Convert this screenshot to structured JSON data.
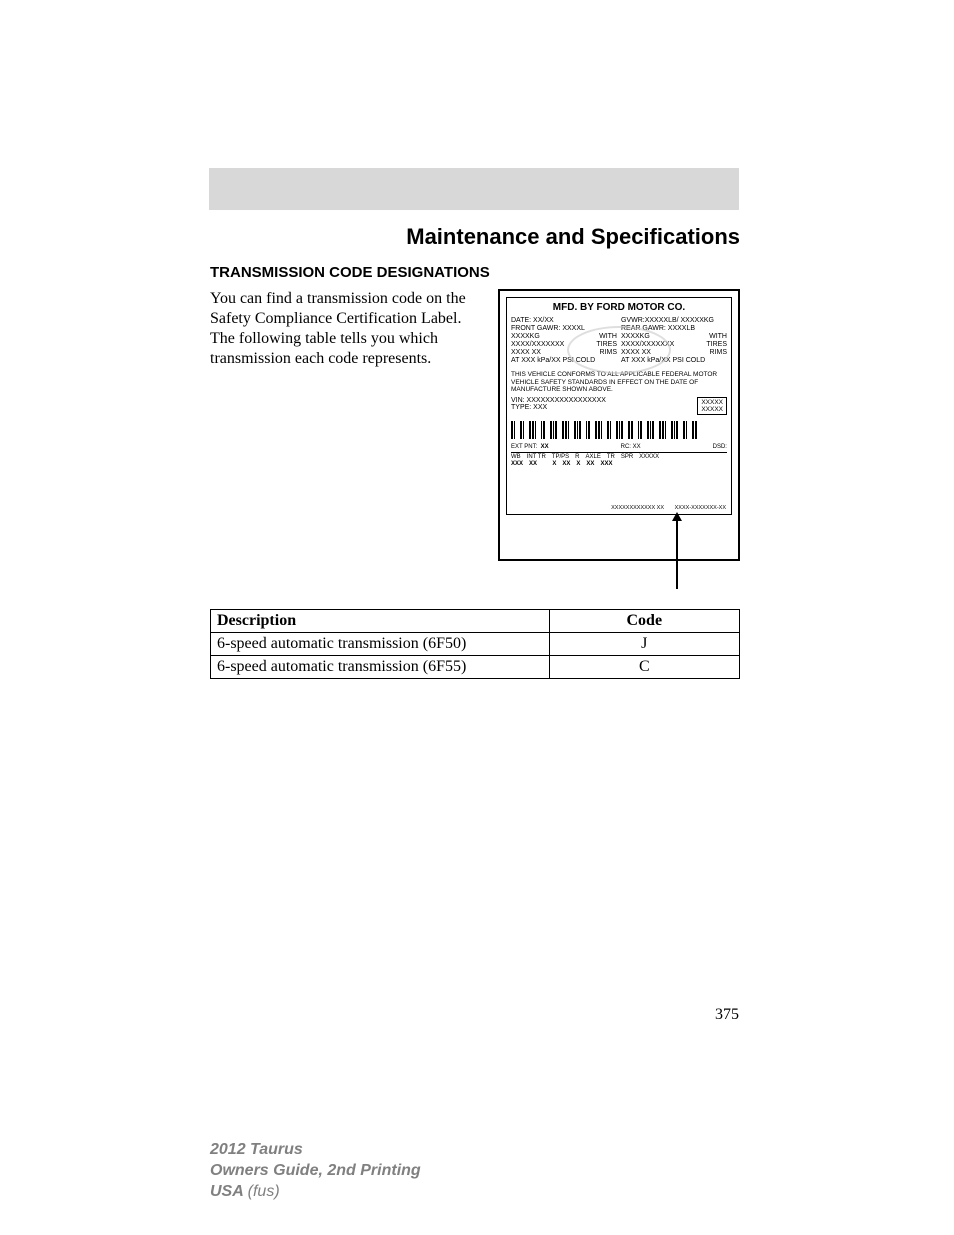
{
  "header": {
    "section_title": "Maintenance and Specifications",
    "subsection": "TRANSMISSION CODE DESIGNATIONS"
  },
  "body": {
    "paragraph": "You can find a transmission code on the Safety Compliance Certification Label. The following table tells you which transmission each code represents."
  },
  "label": {
    "mfd_by": "MFD. BY FORD MOTOR CO.",
    "left": {
      "date": "DATE: XX/XX",
      "front_gawr": "FRONT GAWR: XXXXL",
      "kg": "XXXXKG",
      "tires": "XXXX/XXXXXXX",
      "rims": "XXXX XX",
      "psi": "AT  XXX  kPa/XX       PSI COLD",
      "with": "WITH",
      "tires_lbl": "TIRES",
      "rims_lbl": "RIMS"
    },
    "right": {
      "gvwr": "GVWR:XXXXXLB/ XXXXXKG",
      "rear_gawr": "REAR GAWR:      XXXXLB",
      "kg": "XXXXKG",
      "tires": "XXXX/XXXXXXX",
      "rims": "XXXX XX",
      "psi": "AT  XXX  kPa/XX     PSI COLD",
      "with": "WITH",
      "tires_lbl": "TIRES",
      "rims_lbl": "RIMS"
    },
    "conform": "THIS VEHICLE CONFORMS TO ALL APPLICABLE FEDERAL MOTOR VEHICLE SAFETY STANDARDS IN EFFECT ON THE DATE OF MANUFACTURE SHOWN ABOVE.",
    "vin": "VIN:   XXXXXXXXXXXXXXXXX",
    "type": "TYPE:  XXX",
    "box1": "XXXXX",
    "box2": "XXXXX",
    "bottom": {
      "ext_pnt": "EXT PNT:",
      "ext_pnt_v": "XX",
      "rc": "RC: XX",
      "dsd": "DSD:",
      "wb": "WB",
      "int_tr": "INT TR",
      "tpps": "TP/PS",
      "r": "R",
      "axle": "AXLE",
      "tr": "TR",
      "spr": "SPR",
      "xxxxx": "XXXXX",
      "v_wb": "XXX",
      "v_int": "XX",
      "v_tp": "X",
      "v_ax": "XX",
      "v_tr": "X",
      "v_xx": "XX",
      "v_xxx": "XXX"
    },
    "serial1": "XXXXXXXXXXXX  XX",
    "serial2": "XXXX-XXXXXXX-XX"
  },
  "table": {
    "headers": {
      "description": "Description",
      "code": "Code"
    },
    "rows": [
      {
        "description": "6-speed automatic transmission (6F50)",
        "code": "J"
      },
      {
        "description": "6-speed automatic transmission (6F55)",
        "code": "C"
      }
    ]
  },
  "page_number": "375",
  "footer": {
    "line1": "2012 Taurus",
    "line2": "Owners Guide, 2nd Printing",
    "line3a": "USA ",
    "line3b": "(fus)"
  }
}
